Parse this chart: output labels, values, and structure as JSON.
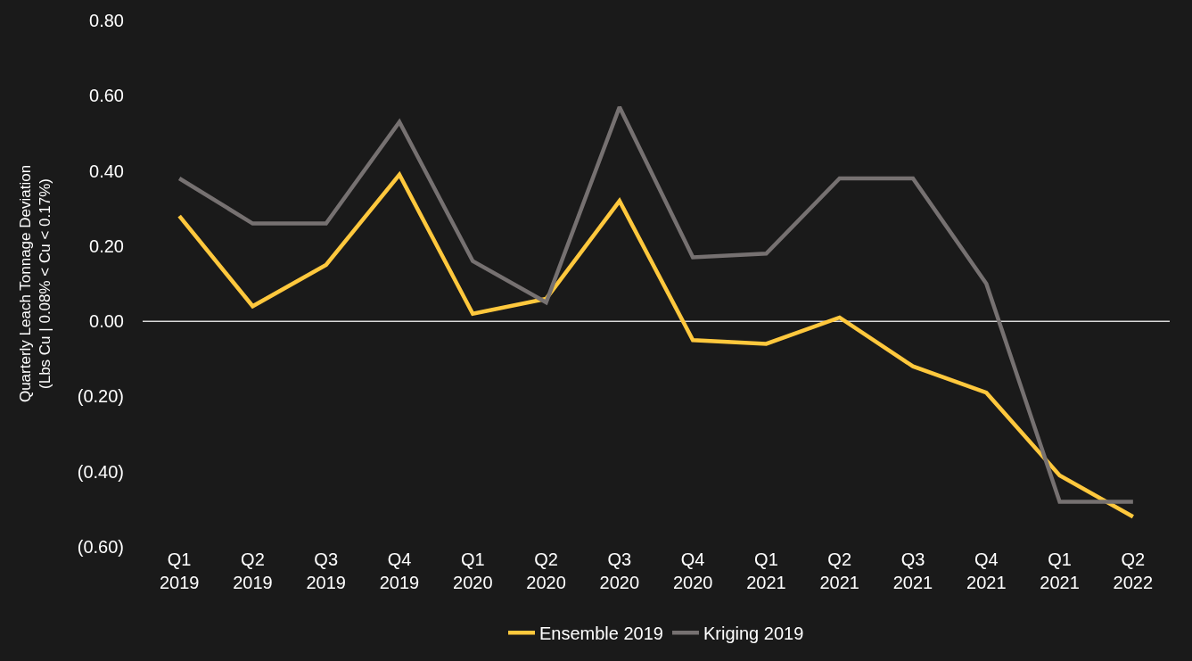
{
  "chart_data": {
    "type": "line",
    "ylabel": "Quarterly Leach Tonnage Deviation\n(Lbs Cu | 0.08% < Cu < 0.17%)",
    "categories": [
      "Q1\n2019",
      "Q2\n2019",
      "Q3\n2019",
      "Q4\n2019",
      "Q1\n2020",
      "Q2\n2020",
      "Q3\n2020",
      "Q4\n2020",
      "Q1\n2021",
      "Q2\n2021",
      "Q3\n2021",
      "Q4\n2021",
      "Q1\n2021",
      "Q2\n2022"
    ],
    "series": [
      {
        "name": "Ensemble 2019",
        "color": "#ffc83d",
        "values": [
          0.28,
          0.04,
          0.15,
          0.39,
          0.02,
          0.06,
          0.32,
          -0.05,
          -0.06,
          0.01,
          -0.12,
          -0.19,
          -0.41,
          -0.52
        ]
      },
      {
        "name": "Kriging 2019",
        "color": "#767171",
        "values": [
          0.38,
          0.26,
          0.26,
          0.53,
          0.16,
          0.05,
          0.57,
          0.17,
          0.18,
          0.38,
          0.38,
          0.1,
          -0.48,
          -0.48
        ]
      }
    ],
    "ylim": [
      -0.6,
      0.8
    ],
    "yticks": [
      {
        "value": 0.8,
        "label": "0.80"
      },
      {
        "value": 0.6,
        "label": "0.60"
      },
      {
        "value": 0.4,
        "label": "0.40"
      },
      {
        "value": 0.2,
        "label": "0.20"
      },
      {
        "value": 0,
        "label": "0.00"
      },
      {
        "value": -0.2,
        "label": "(0.20)"
      },
      {
        "value": -0.4,
        "label": "(0.40)"
      },
      {
        "value": -0.6,
        "label": "(0.60)"
      }
    ],
    "ref_lines": [
      {
        "axis": "y",
        "value": 0,
        "color": "#d9d9d9"
      }
    ],
    "grid": false,
    "legend": "bottom",
    "marker": "none",
    "line_style": "solid"
  }
}
